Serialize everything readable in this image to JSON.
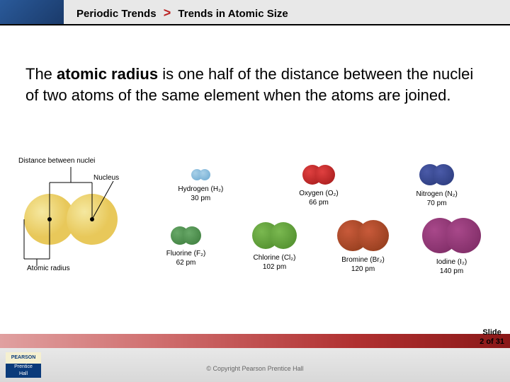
{
  "header": {
    "left": "Periodic Trends",
    "right": "Trends in Atomic Size"
  },
  "body": {
    "pre": "The ",
    "bold": "atomic radius",
    "post": " is one half of the distance between the nuclei of two atoms of the same element when the atoms are joined."
  },
  "radius_diagram": {
    "label_top": "Distance between nuclei",
    "label_nucleus": "Nucleus",
    "label_bottom": "Atomic radius",
    "atom_color": "#e8c85a",
    "atom_highlight": "#f5e8a0",
    "nucleus_color": "#000000",
    "atom_r": 36
  },
  "molecules": [
    {
      "name": "Hydrogen (H₂)",
      "pm": "30 pm",
      "r": 8,
      "color": "#a8d0e8",
      "shade": "#6aa8d0"
    },
    {
      "name": "Oxygen (O₂)",
      "pm": "66 pm",
      "r": 14,
      "color": "#e04040",
      "shade": "#a01818"
    },
    {
      "name": "Nitrogen (N₂)",
      "pm": "70 pm",
      "r": 15,
      "color": "#4a5aa8",
      "shade": "#283878"
    },
    {
      "name": "Fluorine (F₂)",
      "pm": "62 pm",
      "r": 13,
      "color": "#68a868",
      "shade": "#3a7a3a"
    },
    {
      "name": "Chlorine (Cl₂)",
      "pm": "102 pm",
      "r": 19,
      "color": "#7ab850",
      "shade": "#4a8828"
    },
    {
      "name": "Bromine (Br₂)",
      "pm": "120 pm",
      "r": 22,
      "color": "#c85a3a",
      "shade": "#8a3818"
    },
    {
      "name": "Iodine (I₂)",
      "pm": "140 pm",
      "r": 25,
      "color": "#a8488a",
      "shade": "#782860"
    }
  ],
  "footer": {
    "slide_label": "Slide",
    "slide_num": "2 of 31",
    "copyright": "© Copyright Pearson Prentice Hall",
    "logo_top": "PEARSON",
    "logo_bot1": "Prentice",
    "logo_bot2": "Hall"
  }
}
